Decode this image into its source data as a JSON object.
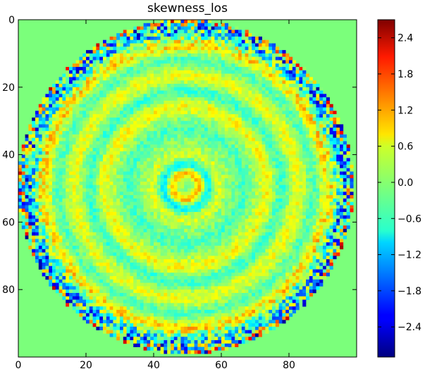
{
  "chart_data": {
    "type": "heatmap",
    "title": "skewness_los",
    "xlabel": "",
    "ylabel": "",
    "x_range": [
      0,
      99
    ],
    "y_range": [
      0,
      99
    ],
    "y_inverted": true,
    "x_ticks": [
      "0",
      "20",
      "40",
      "60",
      "80"
    ],
    "y_ticks": [
      "0",
      "20",
      "40",
      "60",
      "80"
    ],
    "x_tick_values": [
      0,
      20,
      40,
      60,
      80
    ],
    "y_tick_values": [
      0,
      20,
      40,
      60,
      80
    ],
    "colormap": "jet",
    "background_value": 0.1,
    "colorbar": {
      "range": [
        -2.9,
        2.7
      ],
      "tick_values": [
        2.4,
        1.8,
        1.2,
        0.6,
        0.0,
        -0.6,
        -1.2,
        -1.8,
        -2.4
      ],
      "tick_labels": [
        "2.4",
        "1.8",
        "1.2",
        "0.6",
        "0.0",
        "−0.6",
        "−1.2",
        "−1.8",
        "−2.4"
      ]
    },
    "pattern": {
      "description_center": [
        49,
        49
      ],
      "disk_radius": 49,
      "rings": [
        {
          "radius": 4,
          "value": 0.9
        },
        {
          "radius": 6.5,
          "value": -0.8
        },
        {
          "radius": 10,
          "value": 0.4
        },
        {
          "radius": 17,
          "value": -0.4
        },
        {
          "radius": 24,
          "value": 0.6
        },
        {
          "radius": 28,
          "value": -0.5
        },
        {
          "radius": 33,
          "value": 0.5
        },
        {
          "radius": 38,
          "value": -0.4
        },
        {
          "radius": 42,
          "value": 0.8
        },
        {
          "radius": 46,
          "value": -1.0
        }
      ]
    }
  }
}
